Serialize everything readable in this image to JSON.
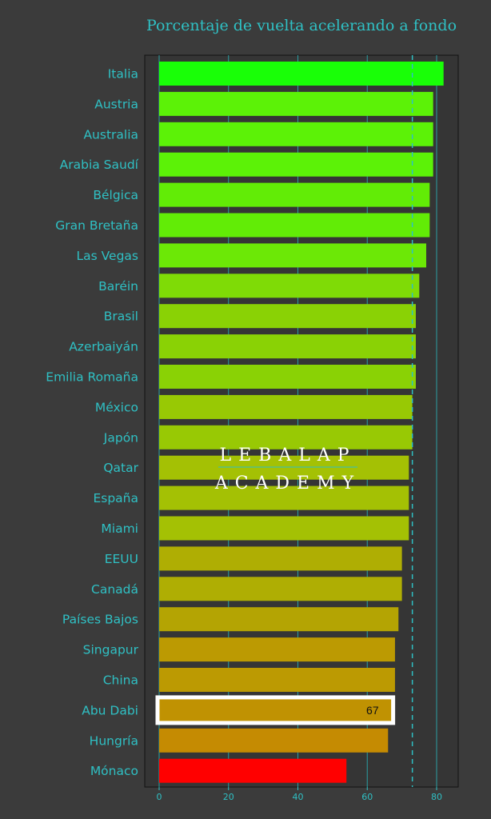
{
  "chart_data": {
    "type": "bar",
    "orientation": "horizontal",
    "title": "Porcentaje de vuelta acelerando a fondo",
    "xlabel": "",
    "ylabel": "",
    "xlim": [
      0,
      86
    ],
    "xticks": [
      0,
      20,
      40,
      60,
      80
    ],
    "grid": true,
    "reference_line": 73,
    "categories": [
      "Italia",
      "Austria",
      "Australia",
      "Arabia Saudí",
      "Bélgica",
      "Gran Bretaña",
      "Las Vegas",
      "Baréin",
      "Brasil",
      "Azerbaiyán",
      "Emilia Romaña",
      "México",
      "Japón",
      "Qatar",
      "España",
      "Miami",
      "EEUU",
      "Canadá",
      "Países Bajos",
      "Singapur",
      "China",
      "Abu Dabi",
      "Hungría",
      "Mónaco"
    ],
    "values": [
      82,
      79,
      79,
      79,
      78,
      78,
      77,
      75,
      74,
      74,
      74,
      73,
      73,
      72,
      72,
      72,
      70,
      70,
      69,
      68,
      68,
      67,
      66,
      54
    ],
    "colors": [
      "#19ff07",
      "#5cf207",
      "#5cf207",
      "#5cf207",
      "#62ec06",
      "#62ec06",
      "#6ce806",
      "#7fdb06",
      "#8ad205",
      "#8ad205",
      "#8ad205",
      "#98c904",
      "#98c904",
      "#a4c104",
      "#a4c104",
      "#a4c104",
      "#afae03",
      "#afae03",
      "#b4a403",
      "#bc9a02",
      "#bc9a02",
      "#c09202",
      "#c58b02",
      "#ff0000"
    ],
    "highlight": {
      "category": "Abu Dabi",
      "label": "67",
      "outline_color": "#ffffff"
    },
    "watermark": [
      "LEBALAP",
      "ACADEMY"
    ]
  }
}
